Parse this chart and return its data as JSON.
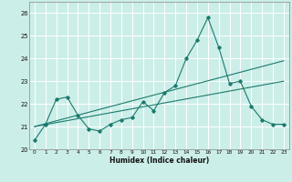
{
  "title": "",
  "xlabel": "Humidex (Indice chaleur)",
  "ylabel": "",
  "bg_color": "#cceee8",
  "grid_color": "#ffffff",
  "line_color": "#1a7a6e",
  "xlim": [
    -0.5,
    23.5
  ],
  "ylim": [
    20.0,
    26.5
  ],
  "yticks": [
    20,
    21,
    22,
    23,
    24,
    25,
    26
  ],
  "xticks": [
    0,
    1,
    2,
    3,
    4,
    5,
    6,
    7,
    8,
    9,
    10,
    11,
    12,
    13,
    14,
    15,
    16,
    17,
    18,
    19,
    20,
    21,
    22,
    23
  ],
  "line1_x": [
    0,
    1,
    2,
    3,
    4,
    5,
    6,
    7,
    8,
    9,
    10,
    11,
    12,
    13,
    14,
    15,
    16,
    17,
    18,
    19,
    20,
    21,
    22,
    23
  ],
  "line1_y": [
    20.4,
    21.1,
    22.2,
    22.3,
    21.5,
    20.9,
    20.8,
    21.1,
    21.3,
    21.4,
    22.1,
    21.7,
    22.5,
    22.8,
    24.0,
    24.8,
    25.8,
    24.5,
    22.9,
    23.0,
    21.9,
    21.3,
    21.1,
    21.1
  ],
  "line2_x": [
    0,
    23
  ],
  "line2_y": [
    21.0,
    23.9
  ],
  "line3_x": [
    0,
    23
  ],
  "line3_y": [
    21.0,
    23.0
  ]
}
